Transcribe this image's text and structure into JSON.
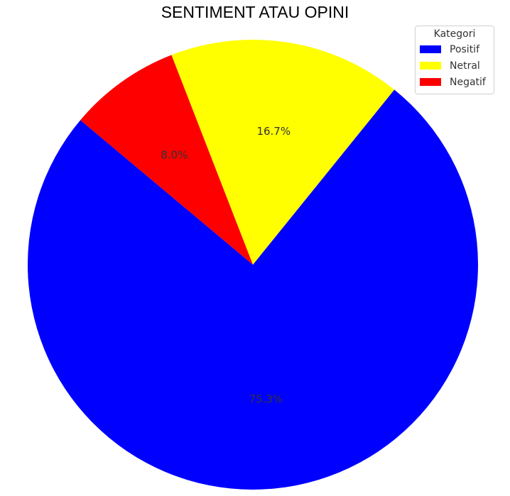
{
  "chart_data": {
    "type": "pie",
    "title": "SENTIMENT ATAU OPINI",
    "categories": [
      "Positif",
      "Netral",
      "Negatif"
    ],
    "values": [
      75.3,
      16.7,
      8.0
    ],
    "labels": [
      "75.3%",
      "16.7%",
      "8.0%"
    ],
    "colors": [
      "#0000ff",
      "#ffff00",
      "#ff0000"
    ],
    "start_angle_deg": 140,
    "direction": "counterclockwise",
    "legend": {
      "title": "Kategori",
      "placement": "top-right"
    }
  }
}
